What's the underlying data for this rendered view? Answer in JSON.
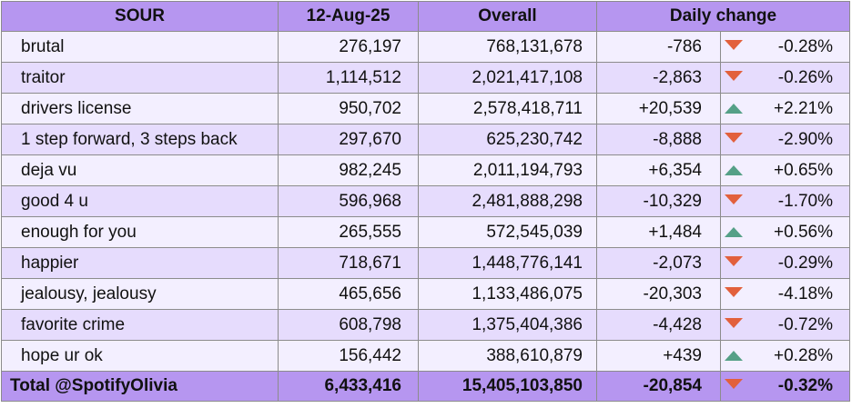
{
  "header": {
    "album": "SOUR",
    "date": "12-Aug-25",
    "overall": "Overall",
    "daily_change": "Daily change"
  },
  "rows": [
    {
      "song": "brutal",
      "daily": "276,197",
      "overall": "768,131,678",
      "change": "-786",
      "pct": "-0.28%",
      "trend": "down"
    },
    {
      "song": "traitor",
      "daily": "1,114,512",
      "overall": "2,021,417,108",
      "change": "-2,863",
      "pct": "-0.26%",
      "trend": "down"
    },
    {
      "song": "drivers license",
      "daily": "950,702",
      "overall": "2,578,418,711",
      "change": "+20,539",
      "pct": "+2.21%",
      "trend": "up"
    },
    {
      "song": "1 step forward, 3 steps back",
      "daily": "297,670",
      "overall": "625,230,742",
      "change": "-8,888",
      "pct": "-2.90%",
      "trend": "down"
    },
    {
      "song": "deja vu",
      "daily": "982,245",
      "overall": "2,011,194,793",
      "change": "+6,354",
      "pct": "+0.65%",
      "trend": "up"
    },
    {
      "song": "good 4 u",
      "daily": "596,968",
      "overall": "2,481,888,298",
      "change": "-10,329",
      "pct": "-1.70%",
      "trend": "down"
    },
    {
      "song": "enough for you",
      "daily": "265,555",
      "overall": "572,545,039",
      "change": "+1,484",
      "pct": "+0.56%",
      "trend": "up"
    },
    {
      "song": "happier",
      "daily": "718,671",
      "overall": "1,448,776,141",
      "change": "-2,073",
      "pct": "-0.29%",
      "trend": "down"
    },
    {
      "song": "jealousy, jealousy",
      "daily": "465,656",
      "overall": "1,133,486,075",
      "change": "-20,303",
      "pct": "-4.18%",
      "trend": "down"
    },
    {
      "song": "favorite crime",
      "daily": "608,798",
      "overall": "1,375,404,386",
      "change": "-4,428",
      "pct": "-0.72%",
      "trend": "down"
    },
    {
      "song": "hope ur ok",
      "daily": "156,442",
      "overall": "388,610,879",
      "change": "+439",
      "pct": "+0.28%",
      "trend": "up"
    }
  ],
  "total": {
    "label": "Total @SpotifyOlivia",
    "daily": "6,433,416",
    "overall": "15,405,103,850",
    "change": "-20,854",
    "pct": "-0.32%",
    "trend": "down"
  },
  "colors": {
    "header_bg": "#b696f0",
    "row_light": "#f3efff",
    "row_dark": "#e6dcfd",
    "down": "#e2603c",
    "up": "#55a087"
  },
  "icons": {
    "down": "triangle-down-icon",
    "up": "triangle-up-icon"
  }
}
